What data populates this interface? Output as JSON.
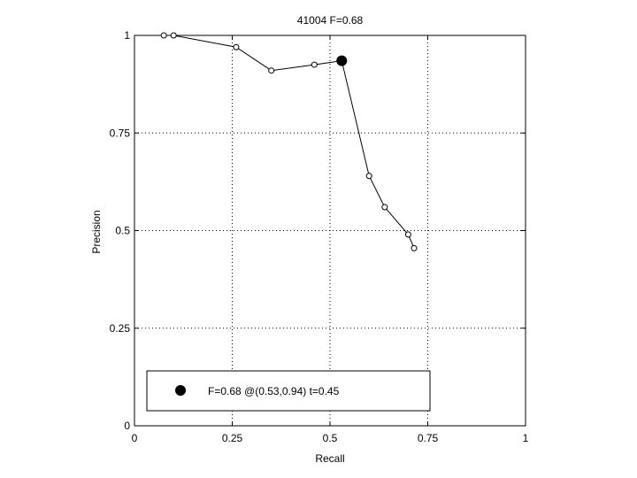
{
  "chart_data": {
    "type": "line",
    "title": "41004 F=0.68",
    "xlabel": "Recall",
    "ylabel": "Precision",
    "xlim": [
      0,
      1
    ],
    "ylim": [
      0,
      1
    ],
    "grid": true,
    "xticks": [
      0,
      0.25,
      0.5,
      0.75,
      1
    ],
    "yticks": [
      0,
      0.25,
      0.5,
      0.75,
      1
    ],
    "xtick_labels": [
      "0",
      "0.25",
      "0.5",
      "0.75",
      "1"
    ],
    "ytick_labels": [
      "0",
      "0.25",
      "0.5",
      "0.75",
      "1"
    ],
    "series": [
      {
        "marker": "open-circle",
        "color": "#000000",
        "points": [
          {
            "x": 0.075,
            "y": 1.0
          },
          {
            "x": 0.1,
            "y": 1.0
          },
          {
            "x": 0.26,
            "y": 0.97
          },
          {
            "x": 0.35,
            "y": 0.91
          },
          {
            "x": 0.46,
            "y": 0.925
          },
          {
            "x": 0.53,
            "y": 0.935
          },
          {
            "x": 0.6,
            "y": 0.64
          },
          {
            "x": 0.64,
            "y": 0.56
          },
          {
            "x": 0.7,
            "y": 0.49
          },
          {
            "x": 0.715,
            "y": 0.455
          }
        ]
      }
    ],
    "highlight": {
      "x": 0.53,
      "y": 0.935,
      "marker": "filled-circle",
      "color": "#000000"
    },
    "legend": {
      "placement": "bottom",
      "entries": [
        {
          "label": "F=0.68 @(0.53,0.94) t=0.45",
          "marker": "filled-circle"
        }
      ]
    }
  }
}
